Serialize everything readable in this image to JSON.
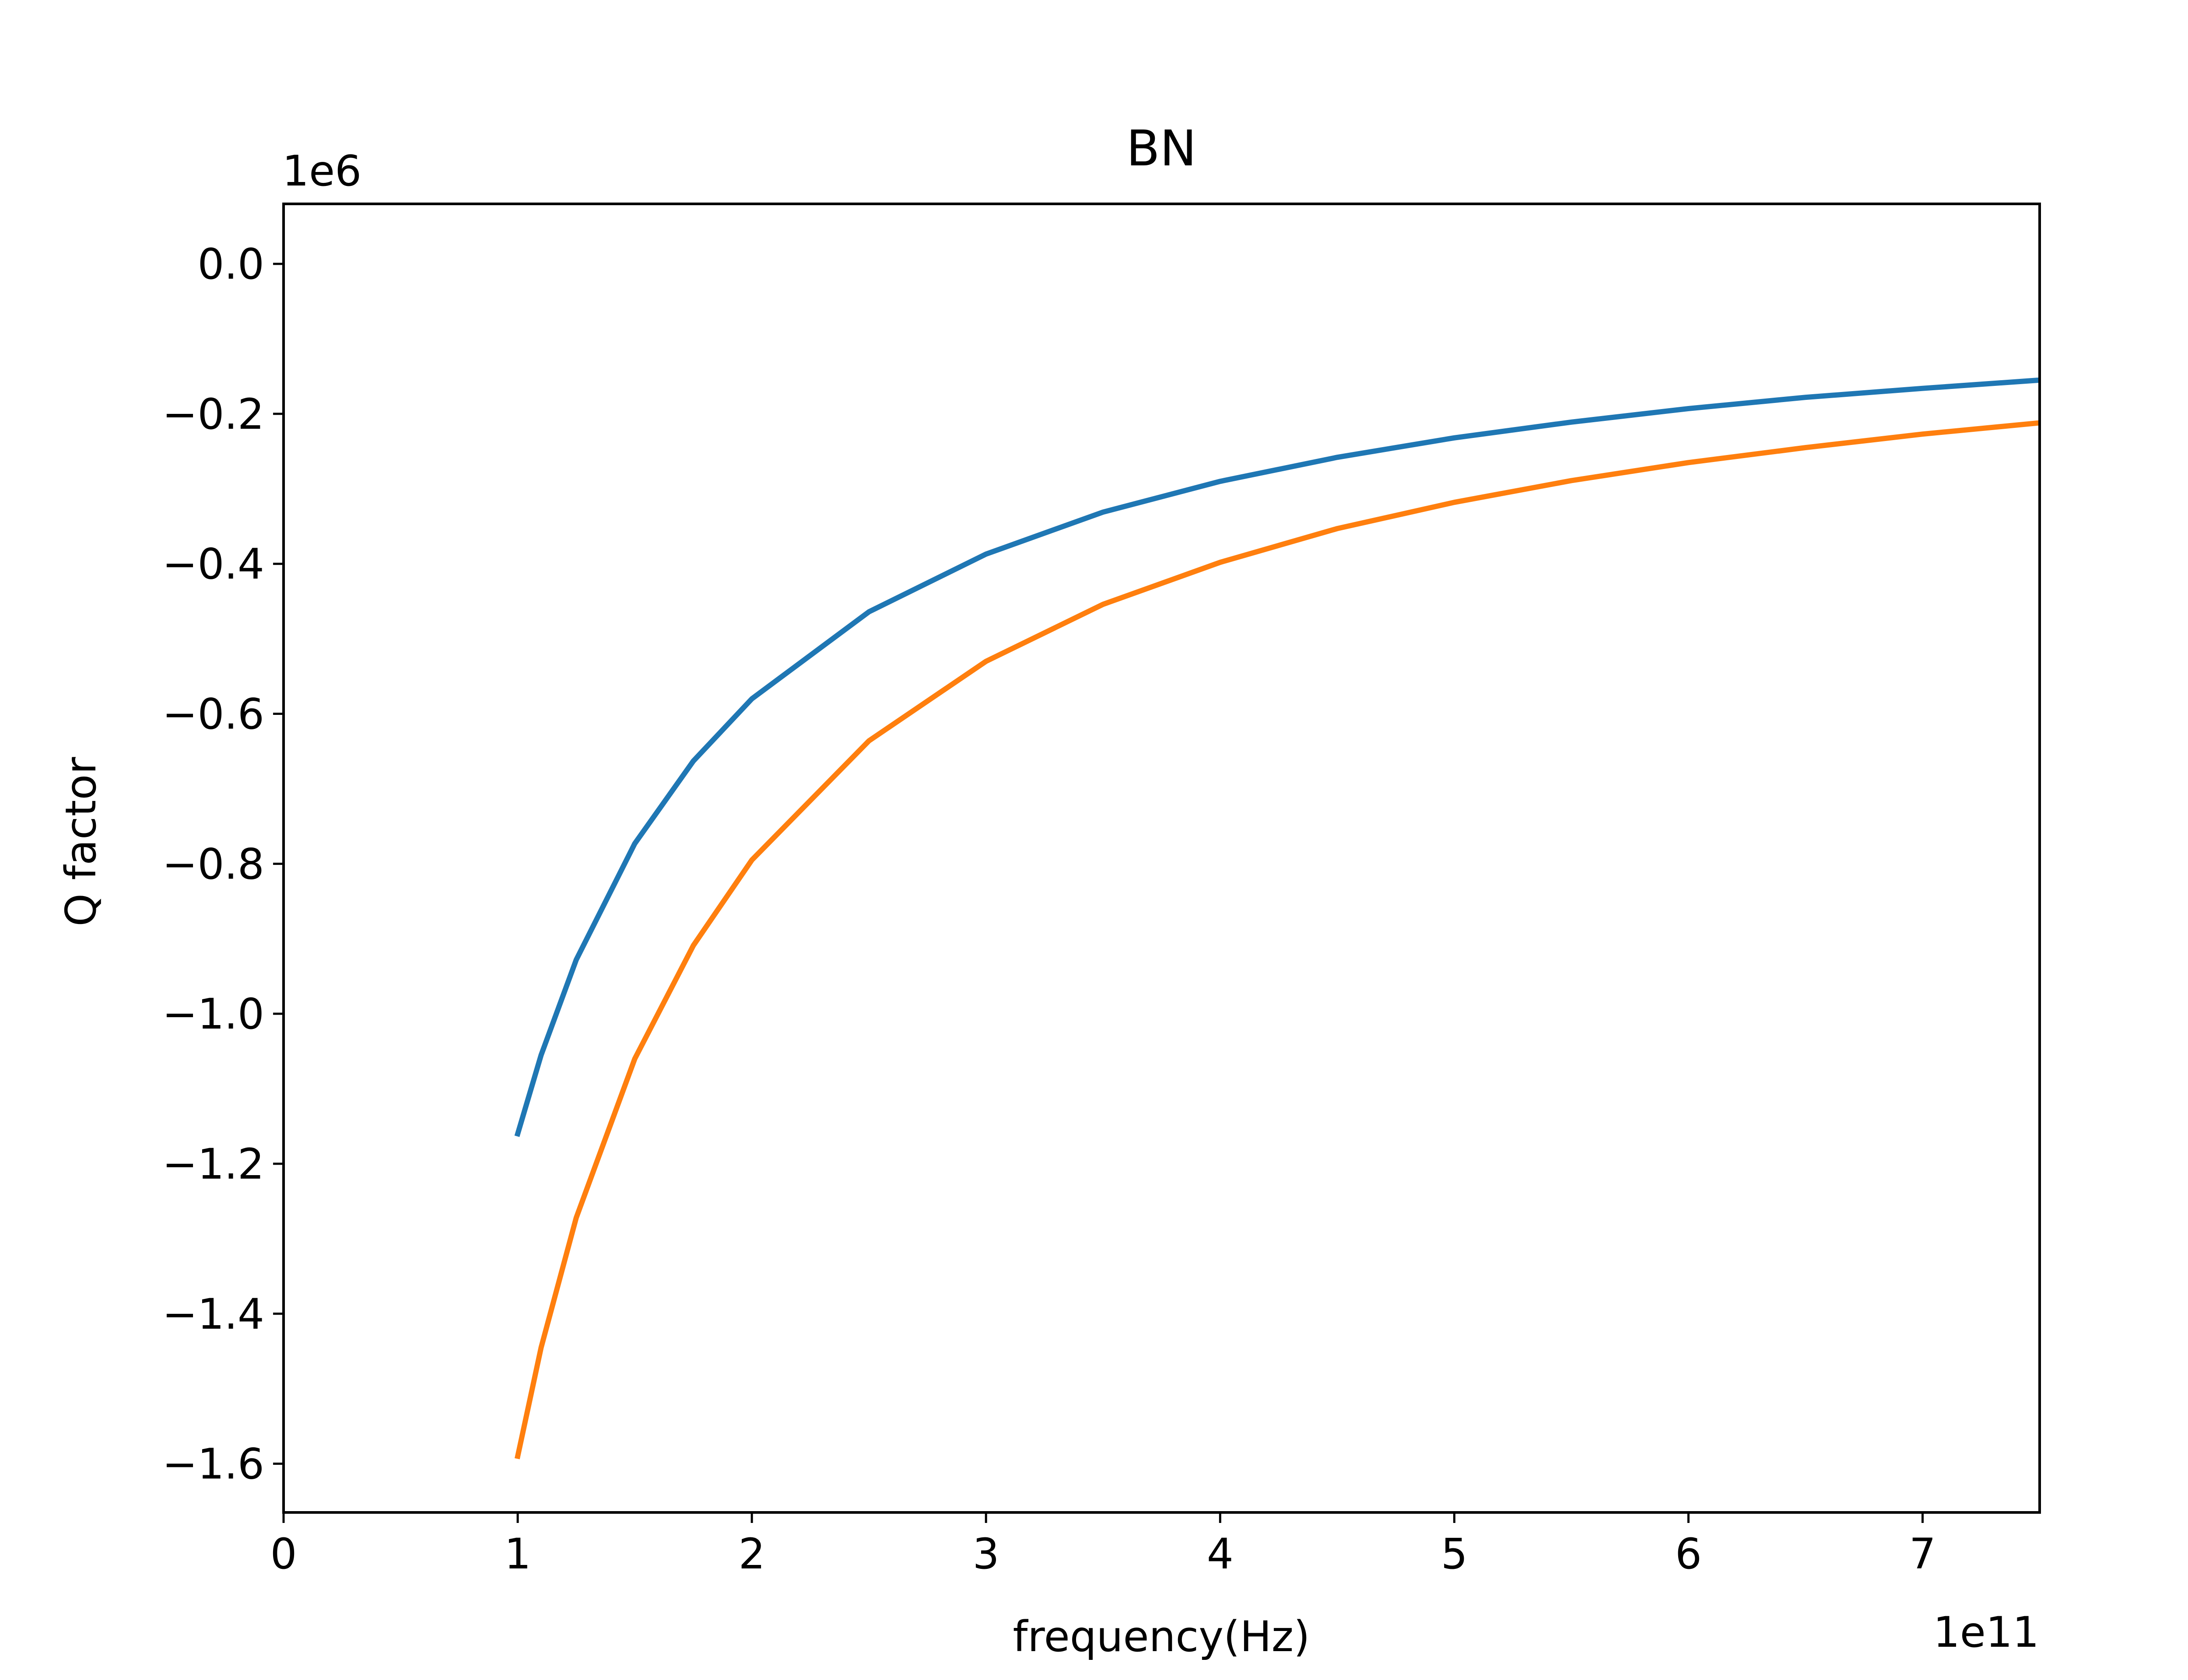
{
  "chart_data": {
    "type": "line",
    "title": "BN",
    "xlabel": "frequency(Hz)",
    "ylabel": "Q factor",
    "x_offset_label": "1e11",
    "y_offset_label": "1e6",
    "xlim": [
      0,
      750000000000
    ],
    "ylim": [
      -1665000,
      80000
    ],
    "x_ticks": [
      {
        "value": 0,
        "label": "0"
      },
      {
        "value": 100000000000,
        "label": "1"
      },
      {
        "value": 200000000000,
        "label": "2"
      },
      {
        "value": 300000000000,
        "label": "3"
      },
      {
        "value": 400000000000,
        "label": "4"
      },
      {
        "value": 500000000000,
        "label": "5"
      },
      {
        "value": 600000000000,
        "label": "6"
      },
      {
        "value": 700000000000,
        "label": "7"
      }
    ],
    "y_ticks": [
      {
        "value": 0,
        "label": "0.0"
      },
      {
        "value": -200000,
        "label": "−0.2"
      },
      {
        "value": -400000,
        "label": "−0.4"
      },
      {
        "value": -600000,
        "label": "−0.6"
      },
      {
        "value": -800000,
        "label": "−0.8"
      },
      {
        "value": -1000000,
        "label": "−1.0"
      },
      {
        "value": -1200000,
        "label": "−1.2"
      },
      {
        "value": -1400000,
        "label": "−1.4"
      },
      {
        "value": -1600000,
        "label": "−1.6"
      }
    ],
    "grid": false,
    "legend": false,
    "series": [
      {
        "color": "#1f77b4",
        "points": [
          [
            100000000000,
            -1160000
          ],
          [
            110000000000,
            -1055000
          ],
          [
            125000000000,
            -928000
          ],
          [
            150000000000,
            -773000
          ],
          [
            175000000000,
            -663000
          ],
          [
            200000000000,
            -580000
          ],
          [
            250000000000,
            -464000
          ],
          [
            300000000000,
            -387000
          ],
          [
            350000000000,
            -331000
          ],
          [
            400000000000,
            -290000
          ],
          [
            450000000000,
            -258000
          ],
          [
            500000000000,
            -232000
          ],
          [
            550000000000,
            -211000
          ],
          [
            600000000000,
            -193000
          ],
          [
            650000000000,
            -178000
          ],
          [
            700000000000,
            -166000
          ],
          [
            750000000000,
            -155000
          ]
        ]
      },
      {
        "color": "#ff7f0e",
        "points": [
          [
            100000000000,
            -1590000
          ],
          [
            110000000000,
            -1445000
          ],
          [
            125000000000,
            -1272000
          ],
          [
            150000000000,
            -1060000
          ],
          [
            175000000000,
            -909000
          ],
          [
            200000000000,
            -795000
          ],
          [
            250000000000,
            -636000
          ],
          [
            300000000000,
            -530000
          ],
          [
            350000000000,
            -454000
          ],
          [
            400000000000,
            -398000
          ],
          [
            450000000000,
            -353000
          ],
          [
            500000000000,
            -318000
          ],
          [
            550000000000,
            -289000
          ],
          [
            600000000000,
            -265000
          ],
          [
            650000000000,
            -245000
          ],
          [
            700000000000,
            -227000
          ],
          [
            750000000000,
            -212000
          ]
        ]
      }
    ]
  }
}
